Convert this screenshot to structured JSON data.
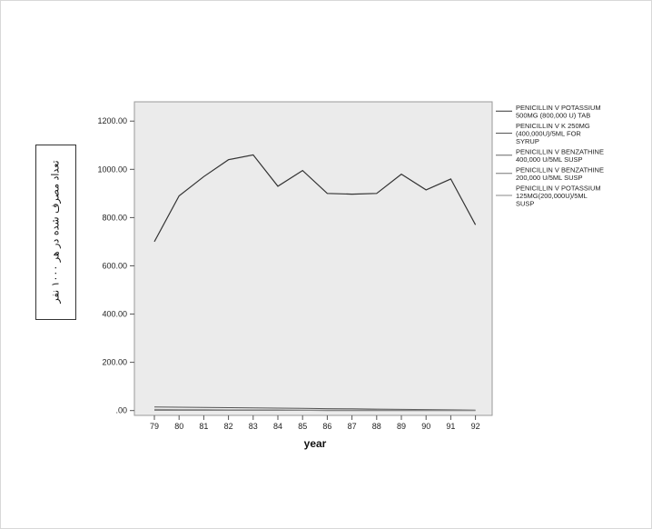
{
  "chart_data": {
    "type": "line",
    "xlabel": "year",
    "ylabel": "تعداد مصرف شده در هر ۱۰۰۰ نفر",
    "categories": [
      "79",
      "80",
      "81",
      "82",
      "83",
      "84",
      "85",
      "86",
      "87",
      "88",
      "89",
      "90",
      "91",
      "92"
    ],
    "ylim": [
      -20,
      1280
    ],
    "yticks": [
      0,
      200,
      400,
      600,
      800,
      1000,
      1200
    ],
    "ytick_labels": [
      ".00",
      "200.00",
      "400.00",
      "600.00",
      "800.00",
      "1000.00",
      "1200.00"
    ],
    "grid": false,
    "legend_position": "right",
    "series": [
      {
        "name": "PENICILLIN V POTASSIUM 500MG (800,000 U) TAB",
        "color": "#333333",
        "values": [
          700,
          890,
          970,
          1040,
          1060,
          930,
          995,
          900,
          897,
          900,
          980,
          915,
          960,
          770
        ]
      },
      {
        "name": "PENICILLIN V K 250MG (400,000U)/5ML FOR SYRUP",
        "color": "#555555",
        "values": [
          15,
          14,
          13,
          12,
          11,
          10,
          9,
          8,
          7,
          6,
          5,
          4,
          3,
          2
        ]
      },
      {
        "name": "PENICILLIN V BENZATHINE 400,000 U/5ML SUSP",
        "color": "#666666",
        "values": [
          2,
          2,
          2,
          1,
          1,
          1,
          1,
          1,
          1,
          1,
          null,
          null,
          null,
          null
        ]
      },
      {
        "name": "PENICILLIN V BENZATHINE 200,000 U/5ML SUSP",
        "color": "#777777",
        "values": [
          1,
          1,
          1,
          1,
          1,
          1,
          1,
          0,
          0,
          0,
          0,
          0,
          0,
          0
        ]
      },
      {
        "name": "PENICILLIN V POTASSIUM 125MG(200,000U)/5ML SUSP",
        "color": "#888888",
        "values": [
          5,
          4,
          4,
          3,
          3,
          3,
          2,
          2,
          2,
          2,
          2,
          1,
          1,
          1
        ]
      }
    ],
    "legend_lines": [
      [
        "PENICILLIN V POTASSIUM",
        "500MG (800,000 U) TAB"
      ],
      [
        "PENICILLIN V K 250MG",
        "(400,000U)/5ML FOR",
        "SYRUP"
      ],
      [
        "PENICILLIN V BENZATHINE",
        "400,000 U/5ML SUSP"
      ],
      [
        "PENICILLIN V BENZATHINE",
        "200,000 U/5ML SUSP"
      ],
      [
        "PENICILLIN V POTASSIUM",
        "125MG(200,000U)/5ML",
        "SUSP"
      ]
    ]
  }
}
